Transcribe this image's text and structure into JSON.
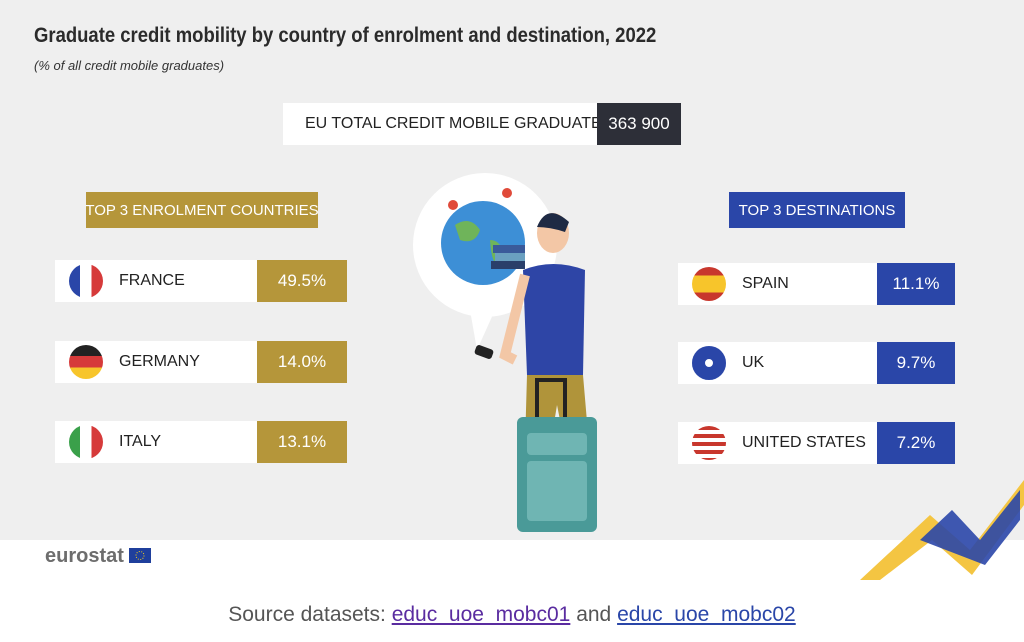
{
  "header": {
    "title": "Graduate credit mobility by country of enrolment and destination, 2022",
    "subtitle": "(% of all credit mobile graduates)"
  },
  "eu_total": {
    "label": "EU TOTAL CREDIT MOBILE GRADUATES",
    "value": "363 900"
  },
  "enrolment": {
    "heading": "TOP 3 ENROLMENT COUNTRIES",
    "rows": [
      [
        "FRANCE",
        "49.5%"
      ],
      [
        "GERMANY",
        "14.0%"
      ],
      [
        "ITALY",
        "13.1%"
      ]
    ]
  },
  "destinations": {
    "heading": "TOP 3 DESTINATIONS",
    "rows": [
      [
        "SPAIN",
        "11.1%"
      ],
      [
        "UK",
        "9.7%"
      ],
      [
        "UNITED STATES",
        "7.2%"
      ]
    ]
  },
  "logo": "eurostat",
  "source": {
    "prefix": "Source datasets:",
    "link1": "educ_uoe_mobc01",
    "joiner": "and",
    "link2": "educ_uoe_mobc02"
  }
}
